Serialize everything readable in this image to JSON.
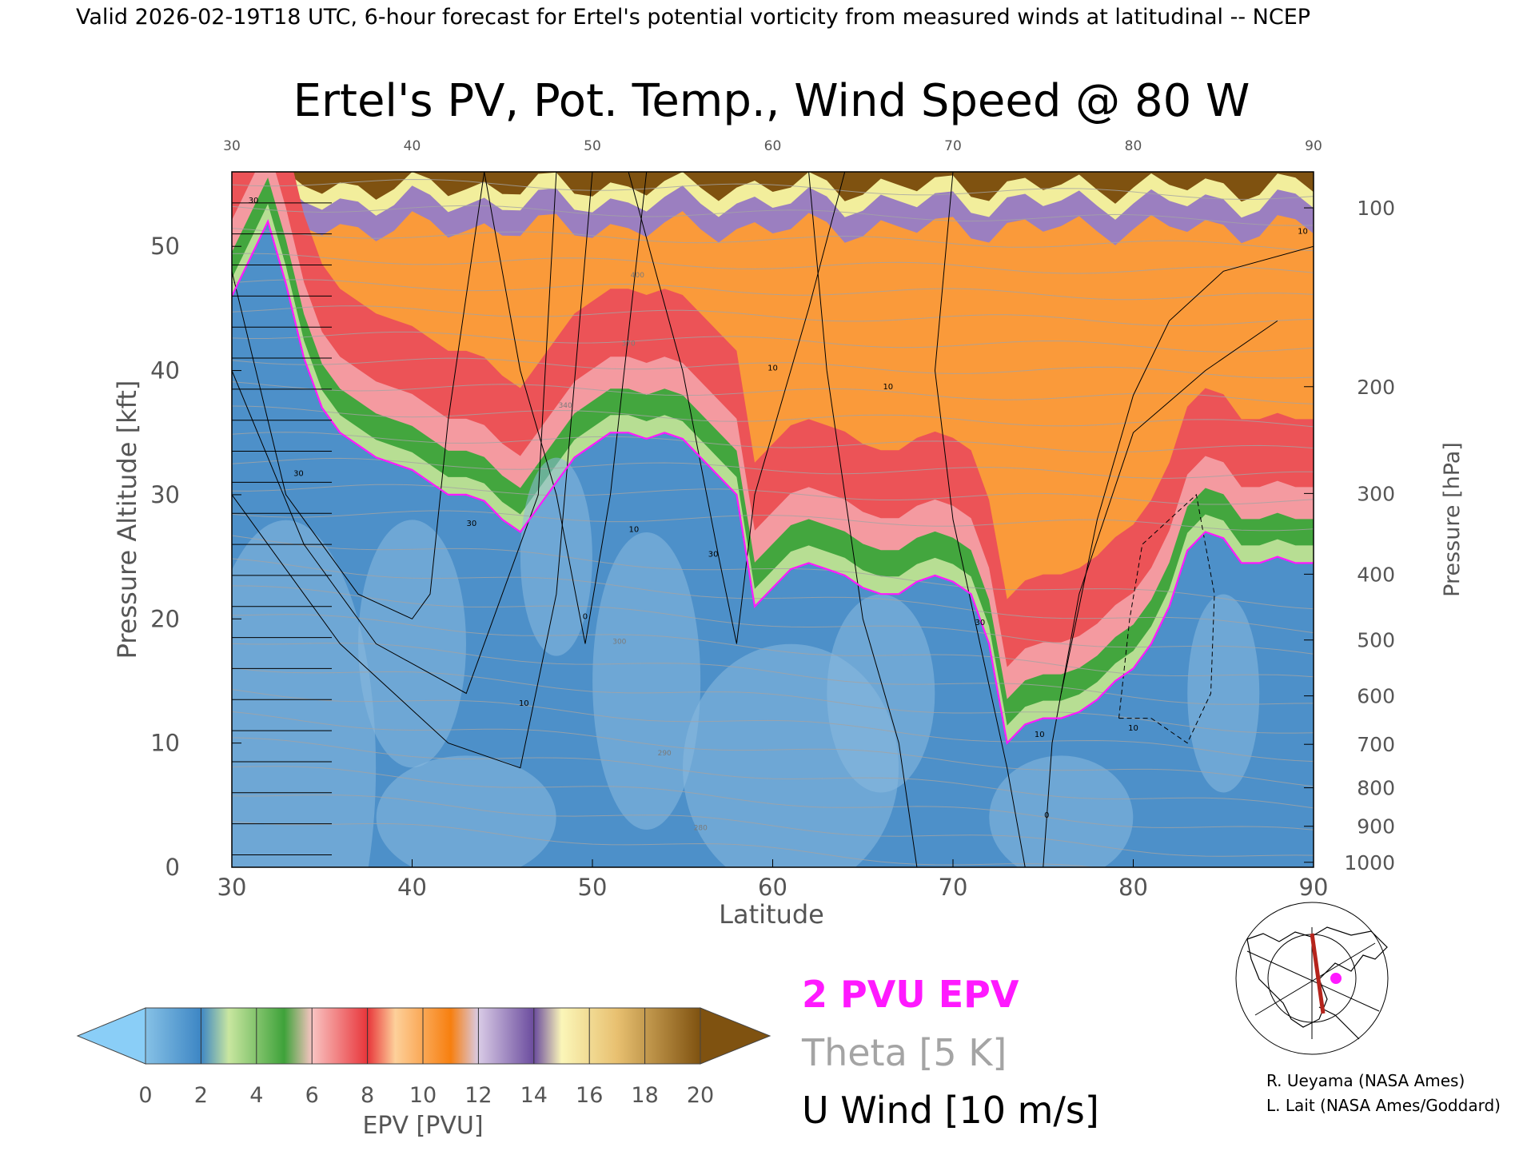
{
  "header": {
    "valid_line": "Valid 2026-02-19T18 UTC, 6-hour forecast for Ertel's potential vorticity from measured winds at latitudinal -- NCEP"
  },
  "chart_data": {
    "type": "heatmap",
    "title": "Ertel's PV, Pot. Temp., Wind Speed @ 80 W",
    "xlabel": "Latitude",
    "ylabel": "Pressure Altitude [kft]",
    "y2label": "Pressure [hPa]",
    "xlim": [
      30,
      90
    ],
    "ylim": [
      0,
      56
    ],
    "x_ticks": [
      30,
      40,
      50,
      60,
      70,
      80,
      90
    ],
    "y_ticks": [
      0,
      10,
      20,
      30,
      40,
      50
    ],
    "pressure_ticks": [
      {
        "hpa": 1000,
        "kft": 0.4
      },
      {
        "hpa": 900,
        "kft": 3.3
      },
      {
        "hpa": 800,
        "kft": 6.4
      },
      {
        "hpa": 700,
        "kft": 9.9
      },
      {
        "hpa": 600,
        "kft": 13.8
      },
      {
        "hpa": 500,
        "kft": 18.3
      },
      {
        "hpa": 400,
        "kft": 23.6
      },
      {
        "hpa": 300,
        "kft": 30.1
      },
      {
        "hpa": 200,
        "kft": 38.7
      },
      {
        "hpa": 100,
        "kft": 53.1
      }
    ],
    "tropopause_2pvu": {
      "lat": [
        30,
        31,
        32,
        33,
        34,
        35,
        36,
        37,
        38,
        39,
        40,
        41,
        42,
        43,
        44,
        45,
        46,
        47,
        48,
        49,
        50,
        51,
        52,
        53,
        54,
        55,
        56,
        57,
        58,
        59,
        60,
        61,
        62,
        63,
        64,
        65,
        66,
        67,
        68,
        69,
        70,
        71,
        72,
        73,
        74,
        75,
        76,
        77,
        78,
        79,
        80,
        81,
        82,
        83,
        84,
        85,
        86,
        87,
        88,
        89,
        90
      ],
      "kft": [
        46,
        49,
        52,
        47,
        41,
        37,
        35,
        34,
        33,
        32.5,
        32,
        31,
        30,
        30,
        29.5,
        28,
        27,
        29,
        31,
        33,
        34,
        35,
        35,
        34.5,
        35,
        34.5,
        33,
        31.5,
        30,
        21,
        22.5,
        24,
        24.5,
        24,
        23.5,
        22.5,
        22,
        22,
        23,
        23.5,
        23,
        22,
        18,
        10,
        11.5,
        12,
        12,
        12.5,
        13.5,
        15,
        16,
        18,
        21,
        25.5,
        27,
        26.5,
        24.5,
        24.5,
        25,
        24.5,
        24.5
      ]
    },
    "theta_labels": [
      {
        "text": "300",
        "lat": 51.5,
        "kft": 18
      },
      {
        "text": "340",
        "lat": 48.5,
        "kft": 37
      },
      {
        "text": "370",
        "lat": 52,
        "kft": 42
      },
      {
        "text": "400",
        "lat": 52.5,
        "kft": 47.5
      },
      {
        "text": "290",
        "lat": 54,
        "kft": 9
      },
      {
        "text": "280",
        "lat": 56,
        "kft": 3
      }
    ],
    "u_wind_labels": [
      {
        "text": "30",
        "lat": 31.2,
        "kft": 53.5
      },
      {
        "text": "30",
        "lat": 33.7,
        "kft": 31.5
      },
      {
        "text": "30",
        "lat": 43.3,
        "kft": 27.5
      },
      {
        "text": "10",
        "lat": 46.2,
        "kft": 13
      },
      {
        "text": "0",
        "lat": 49.6,
        "kft": 20
      },
      {
        "text": "10",
        "lat": 52.3,
        "kft": 27
      },
      {
        "text": "30",
        "lat": 56.7,
        "kft": 25
      },
      {
        "text": "10",
        "lat": 60,
        "kft": 40
      },
      {
        "text": "10",
        "lat": 66.4,
        "kft": 38.5
      },
      {
        "text": "30",
        "lat": 71.5,
        "kft": 19.5
      },
      {
        "text": "10",
        "lat": 74.8,
        "kft": 10.5
      },
      {
        "text": "0",
        "lat": 75.2,
        "kft": 4
      },
      {
        "text": "10",
        "lat": 80,
        "kft": 11
      },
      {
        "text": "10",
        "lat": 89.4,
        "kft": 51
      }
    ],
    "colorbar": {
      "label": "EPV [PVU]",
      "ticks": [
        0,
        2,
        4,
        6,
        8,
        10,
        12,
        14,
        16,
        18,
        20
      ],
      "colors": [
        "#6fa9d6",
        "#3d86c4",
        "#97d48a",
        "#3ea23a",
        "#f5999a",
        "#e8353a",
        "#fdb56b",
        "#f77f0f",
        "#bba6d3",
        "#6b4c9e",
        "#f2ee9c",
        "#7f5210"
      ],
      "under_color": "#8acef7",
      "over_color": "#7f5210"
    },
    "legend": [
      {
        "label": "2 PVU EPV",
        "color": "#ff19ff"
      },
      {
        "label": "Theta [5 K]",
        "color": "#a4a4a4"
      },
      {
        "label": "U Wind [10 m/s]",
        "color": "#000000"
      }
    ]
  },
  "credits": [
    "R. Ueyama (NASA Ames)",
    "L. Lait (NASA Ames/Goddard)"
  ],
  "inset_map": {
    "marker_color": "#ff19ff",
    "track_color": "#b5241c"
  }
}
